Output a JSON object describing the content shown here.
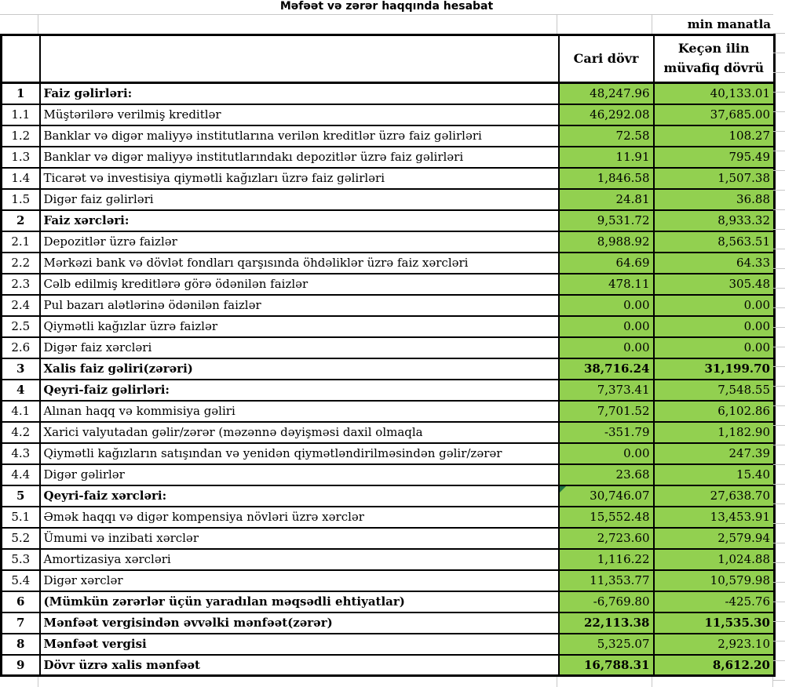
{
  "title": "Məfəət və zərər haqqında hesabat",
  "unit_note": "min manatla",
  "header": {
    "current_period": "Cari dövr",
    "previous_period": "Keçən ilin müvafiq dövrü"
  },
  "colors": {
    "value_fill": "#92D050",
    "table_border": "#000000",
    "gridline": "#C8C8C8",
    "comment_triangle": "#1F7244"
  },
  "rows": [
    {
      "no": "1",
      "label": "Faiz gəlirləri:",
      "current": "48,247.96",
      "previous": "40,133.01",
      "section": true,
      "bold_values": false,
      "comment_current": false
    },
    {
      "no": "1.1",
      "label": "Müştərilərə verilmiş kreditlər",
      "current": "46,292.08",
      "previous": "37,685.00",
      "section": false,
      "bold_values": false,
      "comment_current": false
    },
    {
      "no": "1.2",
      "label": "Banklar və digər maliyyə institutlarına verilən kreditlər üzrə faiz gəlirləri",
      "current": "72.58",
      "previous": "108.27",
      "section": false,
      "bold_values": false,
      "comment_current": false
    },
    {
      "no": "1.3",
      "label": "Banklar və digər maliyyə institutlarındakı depozitlər üzrə faiz gəlirləri",
      "current": "11.91",
      "previous": "795.49",
      "section": false,
      "bold_values": false,
      "comment_current": false
    },
    {
      "no": "1.4",
      "label": "Ticarət və investisiya qiymətli kağızları üzrə faiz gəlirləri",
      "current": "1,846.58",
      "previous": "1,507.38",
      "section": false,
      "bold_values": false,
      "comment_current": false
    },
    {
      "no": "1.5",
      "label": "Digər faiz gəlirləri",
      "current": "24.81",
      "previous": "36.88",
      "section": false,
      "bold_values": false,
      "comment_current": false
    },
    {
      "no": "2",
      "label": "Faiz xərcləri:",
      "current": "9,531.72",
      "previous": "8,933.32",
      "section": true,
      "bold_values": false,
      "comment_current": false
    },
    {
      "no": "2.1",
      "label": "Depozitlər üzrə faizlər",
      "current": "8,988.92",
      "previous": "8,563.51",
      "section": false,
      "bold_values": false,
      "comment_current": false
    },
    {
      "no": "2.2",
      "label": "Mərkəzi bank və dövlət fondları qarşısında öhdəliklər üzrə faiz xərcləri",
      "current": "64.69",
      "previous": "64.33",
      "section": false,
      "bold_values": false,
      "comment_current": false
    },
    {
      "no": "2.3",
      "label": "Cəlb edilmiş kreditlərə görə ödənilən faizlər",
      "current": "478.11",
      "previous": "305.48",
      "section": false,
      "bold_values": false,
      "comment_current": false
    },
    {
      "no": "2.4",
      "label": "Pul bazarı alətlərinə ödənilən faizlər",
      "current": "0.00",
      "previous": "0.00",
      "section": false,
      "bold_values": false,
      "comment_current": false
    },
    {
      "no": "2.5",
      "label": "Qiymətli kağızlar üzrə faizlər",
      "current": "0.00",
      "previous": "0.00",
      "section": false,
      "bold_values": false,
      "comment_current": false
    },
    {
      "no": "2.6",
      "label": "Digər faiz xərcləri",
      "current": "0.00",
      "previous": "0.00",
      "section": false,
      "bold_values": false,
      "comment_current": false
    },
    {
      "no": "3",
      "label": "Xalis faiz gəliri(zərəri)",
      "current": "38,716.24",
      "previous": "31,199.70",
      "section": true,
      "bold_values": true,
      "comment_current": false
    },
    {
      "no": "4",
      "label": "Qeyri-faiz gəlirləri:",
      "current": "7,373.41",
      "previous": "7,548.55",
      "section": true,
      "bold_values": false,
      "comment_current": false
    },
    {
      "no": "4.1",
      "label": "Alınan haqq və kommisiya gəliri",
      "current": "7,701.52",
      "previous": "6,102.86",
      "section": false,
      "bold_values": false,
      "comment_current": false
    },
    {
      "no": "4.2",
      "label": "Xarici valyutadan gəlir/zərər (məzənnə dəyişməsi daxil olmaqla",
      "current": "-351.79",
      "previous": "1,182.90",
      "section": false,
      "bold_values": false,
      "comment_current": false
    },
    {
      "no": "4.3",
      "label": "Qiymətli kağızların satışından və yenidən qiymətləndirilməsindən gəlir/zərər",
      "current": "0.00",
      "previous": "247.39",
      "section": false,
      "bold_values": false,
      "comment_current": false
    },
    {
      "no": "4.4",
      "label": "Digər gəlirlər",
      "current": "23.68",
      "previous": "15.40",
      "section": false,
      "bold_values": false,
      "comment_current": false
    },
    {
      "no": "5",
      "label": "Qeyri-faiz xərcləri:",
      "current": "30,746.07",
      "previous": "27,638.70",
      "section": true,
      "bold_values": false,
      "comment_current": true
    },
    {
      "no": "5.1",
      "label": "Əmək haqqı və digər kompensiya növləri üzrə xərclər",
      "current": "15,552.48",
      "previous": "13,453.91",
      "section": false,
      "bold_values": false,
      "comment_current": false
    },
    {
      "no": "5.2",
      "label": "Ümumi və inzibati xərclər",
      "current": "2,723.60",
      "previous": "2,579.94",
      "section": false,
      "bold_values": false,
      "comment_current": false
    },
    {
      "no": "5.3",
      "label": "Amortizasiya xərcləri",
      "current": "1,116.22",
      "previous": "1,024.88",
      "section": false,
      "bold_values": false,
      "comment_current": false
    },
    {
      "no": "5.4",
      "label": "Digər xərclər",
      "current": "11,353.77",
      "previous": "10,579.98",
      "section": false,
      "bold_values": false,
      "comment_current": false
    },
    {
      "no": "6",
      "label": "(Mümkün zərərlər üçün yaradılan məqsədli ehtiyatlar)",
      "current": "-6,769.80",
      "previous": "-425.76",
      "section": true,
      "bold_values": false,
      "comment_current": false
    },
    {
      "no": "7",
      "label": "Mənfəət vergisindən əvvəlki mənfəət(zərər)",
      "current": "22,113.38",
      "previous": "11,535.30",
      "section": true,
      "bold_values": true,
      "comment_current": false
    },
    {
      "no": "8",
      "label": "Mənfəət vergisi",
      "current": "5,325.07",
      "previous": "2,923.10",
      "section": true,
      "bold_values": false,
      "comment_current": false
    },
    {
      "no": "9",
      "label": "Dövr üzrə xalis mənfəət",
      "current": "16,788.31",
      "previous": "8,612.20",
      "section": true,
      "bold_values": true,
      "comment_current": false
    }
  ]
}
